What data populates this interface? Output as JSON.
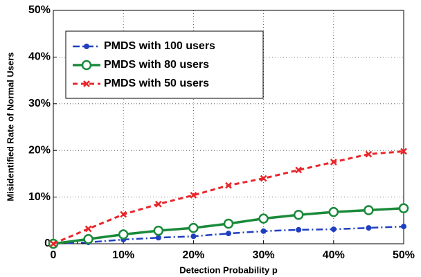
{
  "chart_data": {
    "type": "line",
    "xlabel": "Detection Probability p",
    "ylabel": "Misidentified Rate of Normal Users",
    "x": [
      0,
      5,
      10,
      15,
      20,
      25,
      30,
      35,
      40,
      45,
      50
    ],
    "series": [
      {
        "name": "PMDS with 100 users",
        "color": "#1f3fbf",
        "marker": "dot",
        "linestyle": "dashdot",
        "values": [
          0,
          0.3,
          0.9,
          1.3,
          1.6,
          2.2,
          2.7,
          3.0,
          3.1,
          3.4,
          3.7
        ]
      },
      {
        "name": "PMDS with 80 users",
        "color": "#1a8a3a",
        "marker": "circle",
        "linestyle": "solid",
        "values": [
          0,
          1.0,
          2.0,
          2.8,
          3.4,
          4.3,
          5.4,
          6.2,
          6.8,
          7.2,
          7.6
        ]
      },
      {
        "name": "PMDS with 50 users",
        "color": "#e8262a",
        "marker": "cross",
        "linestyle": "dashed",
        "values": [
          0,
          3.2,
          6.3,
          8.5,
          10.4,
          12.5,
          14.0,
          15.8,
          17.5,
          19.2,
          19.8
        ]
      }
    ],
    "xlim": [
      0,
      50
    ],
    "xticks": [
      0,
      {
        "value": 10,
        "label": "10%"
      },
      {
        "value": 20,
        "label": "20%"
      },
      {
        "value": 30,
        "label": "30%"
      },
      {
        "value": 40,
        "label": "40%"
      },
      {
        "value": 50,
        "label": "50%"
      }
    ],
    "ylim": [
      0,
      50
    ],
    "yticks": [
      0,
      {
        "value": 10,
        "label": "10%"
      },
      {
        "value": 20,
        "label": "20%"
      },
      {
        "value": 30,
        "label": "30%"
      },
      {
        "value": 40,
        "label": "40%"
      },
      {
        "value": 50,
        "label": "50%"
      }
    ],
    "grid": true,
    "legend": "upper-left"
  }
}
